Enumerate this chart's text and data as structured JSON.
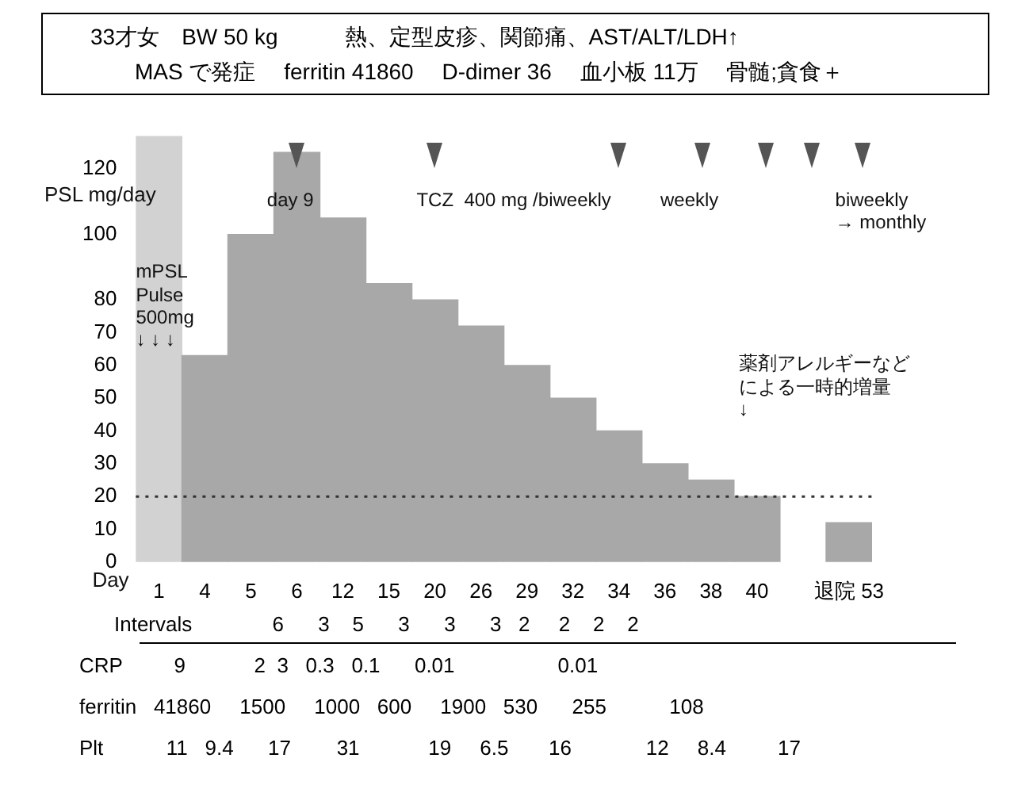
{
  "chart_data": {
    "type": "bar",
    "title": "33才女　BW 50 kg　　　熱、定型皮疹、関節痛、AST/ALT/LDH↑",
    "subtitle": "MAS で発症　 ferritin 41860　 D-dimer 36　 血小板 11万　 骨髄;貪食＋",
    "ylabel": "PSL mg/day",
    "xlabel": "Day",
    "categories": [
      "1",
      "4",
      "5",
      "6",
      "12",
      "15",
      "20",
      "26",
      "29",
      "32",
      "34",
      "36",
      "38",
      "40",
      null,
      "退院 53"
    ],
    "values": [
      130,
      63,
      100,
      125,
      105,
      85,
      80,
      72,
      60,
      50,
      40,
      30,
      25,
      20,
      null,
      12
    ],
    "colors": [
      "#d2d2d2",
      "#a8a8a8",
      "#a8a8a8",
      "#a8a8a8",
      "#a8a8a8",
      "#a8a8a8",
      "#a8a8a8",
      "#a8a8a8",
      "#a8a8a8",
      "#a8a8a8",
      "#a8a8a8",
      "#a8a8a8",
      "#a8a8a8",
      "#a8a8a8",
      "#a8a8a8",
      "#a8a8a8"
    ],
    "ylim": [
      0,
      130
    ],
    "yticks": [
      0,
      10,
      20,
      30,
      40,
      50,
      60,
      70,
      80,
      100,
      120
    ],
    "grid": false,
    "legend": false,
    "ref_lines": [
      {
        "axis": "y",
        "value": 20,
        "color": "#333333",
        "line_style": "dotted"
      }
    ],
    "annotations": [
      "mPSL Pulse 500mg ↓ ↓ ↓",
      "day 9",
      "TCZ  400 mg /biweekly",
      "weekly",
      "biweekly\n→ monthly",
      "薬剤アレルギーなどによる一時的増量\n↓",
      "Intervals              6      3    5      3      3      3   2     2    2    2",
      "CRP         9            2  3   0.3   0.1      0.01                  0.01",
      "ferritin   41860     1500     1000   600     1900   530      255           108",
      "Plt           11   9.4      17        31            19     6.5       16             12     8.4         17"
    ]
  }
}
